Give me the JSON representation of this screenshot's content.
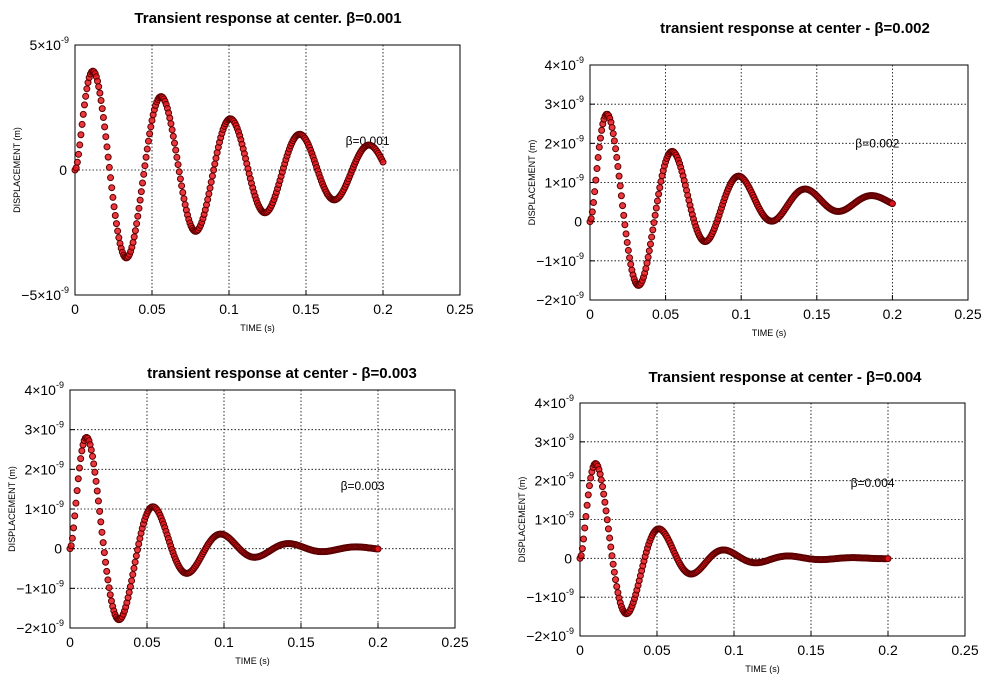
{
  "chart_data": [
    {
      "type": "scatter",
      "title": "Transient response at center. β=0.001",
      "xlabel": "TIME (s)",
      "ylabel": "DISPLACEMENT (m)",
      "annotation": "β=0.001",
      "beta": 0.001,
      "xlim": [
        0,
        0.25
      ],
      "ylim": [
        -5e-09,
        5e-09
      ],
      "x_ticks": [
        "0",
        "0.05",
        "0.1",
        "0.15",
        "0.2",
        "0.25"
      ],
      "y_ticks": [
        {
          "base": "−5×10",
          "exp": "-9"
        },
        {
          "base": "0",
          "exp": ""
        },
        {
          "base": "5×10",
          "exp": "-9"
        }
      ],
      "y_tick_values": [
        -5e-09,
        0,
        5e-09
      ],
      "grid": true,
      "series": [
        {
          "amplitude": 4.6e-09,
          "period": 0.045,
          "decay": 8.0,
          "phase": 0.01,
          "x_range": [
            0,
            0.2
          ]
        }
      ],
      "markers": {
        "count": 260,
        "fill": "#e8141c",
        "edge": "#5a0000"
      }
    },
    {
      "type": "scatter",
      "title": "transient response at center - β=0.002",
      "xlabel": "TIME (s)",
      "ylabel": "DISPLACEMENT (m)",
      "annotation": "β=0.002",
      "beta": 0.002,
      "xlim": [
        0,
        0.25
      ],
      "ylim": [
        -2e-09,
        4e-09
      ],
      "x_ticks": [
        "0",
        "0.05",
        "0.1",
        "0.15",
        "0.2",
        "0.25"
      ],
      "y_ticks": [
        {
          "base": "−2×10",
          "exp": "-9"
        },
        {
          "base": "−1×10",
          "exp": "-9"
        },
        {
          "base": "0",
          "exp": ""
        },
        {
          "base": "1×10",
          "exp": "-9"
        },
        {
          "base": "2×10",
          "exp": "-9"
        },
        {
          "base": "3×10",
          "exp": "-9"
        },
        {
          "base": "4×10",
          "exp": "-9"
        }
      ],
      "y_tick_values": [
        -2e-09,
        -1e-09,
        0,
        1e-09,
        2e-09,
        3e-09,
        4e-09
      ],
      "grid": true,
      "series": [
        {
          "amplitude": 3.3e-09,
          "period": 0.044,
          "decay": 16.0,
          "phase": 0.012,
          "offset": 5e-10,
          "x_range": [
            0,
            0.2
          ]
        }
      ],
      "markers": {
        "count": 260,
        "fill": "#e8141c",
        "edge": "#5a0000"
      }
    },
    {
      "type": "scatter",
      "title": "transient response at center - β=0.003",
      "xlabel": "TIME (s)",
      "ylabel": "DISPLACEMENT (m)",
      "annotation": "β=0.003",
      "beta": 0.003,
      "xlim": [
        0,
        0.25
      ],
      "ylim": [
        -2e-09,
        4e-09
      ],
      "x_ticks": [
        "0",
        "0.05",
        "0.1",
        "0.15",
        "0.2",
        "0.25"
      ],
      "y_ticks": [
        {
          "base": "−2×10",
          "exp": "-9"
        },
        {
          "base": "−1×10",
          "exp": "-9"
        },
        {
          "base": "0",
          "exp": ""
        },
        {
          "base": "1×10",
          "exp": "-9"
        },
        {
          "base": "2×10",
          "exp": "-9"
        },
        {
          "base": "3×10",
          "exp": "-9"
        },
        {
          "base": "4×10",
          "exp": "-9"
        }
      ],
      "y_tick_values": [
        -2e-09,
        -1e-09,
        0,
        1e-09,
        2e-09,
        3e-09,
        4e-09
      ],
      "grid": true,
      "series": [
        {
          "amplitude": 3.9e-09,
          "period": 0.044,
          "decay": 24.0,
          "phase": 0.011,
          "offset": 0.0,
          "x_range": [
            0,
            0.2
          ]
        }
      ],
      "markers": {
        "count": 260,
        "fill": "#e8141c",
        "edge": "#5a0000"
      }
    },
    {
      "type": "scatter",
      "title": "Transient response at center - β=0.004",
      "xlabel": "TIME (s)",
      "ylabel": "DISPLACEMENT (m)",
      "annotation": "β=0.004",
      "beta": 0.004,
      "xlim": [
        0,
        0.25
      ],
      "ylim": [
        -2e-09,
        4e-09
      ],
      "x_ticks": [
        "0",
        "0.05",
        "0.1",
        "0.15",
        "0.2",
        "0.25"
      ],
      "y_ticks": [
        {
          "base": "−2×10",
          "exp": "-9"
        },
        {
          "base": "−1×10",
          "exp": "-9"
        },
        {
          "base": "0",
          "exp": ""
        },
        {
          "base": "1×10",
          "exp": "-9"
        },
        {
          "base": "2×10",
          "exp": "-9"
        },
        {
          "base": "3×10",
          "exp": "-9"
        },
        {
          "base": "4×10",
          "exp": "-9"
        }
      ],
      "y_tick_values": [
        -2e-09,
        -1e-09,
        0,
        1e-09,
        2e-09,
        3e-09,
        4e-09
      ],
      "grid": true,
      "series": [
        {
          "amplitude": 3.6e-09,
          "period": 0.042,
          "decay": 30.0,
          "phase": 0.009,
          "offset": 0.0,
          "x_range": [
            0,
            0.2
          ]
        }
      ],
      "markers": {
        "count": 260,
        "fill": "#e8141c",
        "edge": "#5a0000"
      }
    }
  ]
}
